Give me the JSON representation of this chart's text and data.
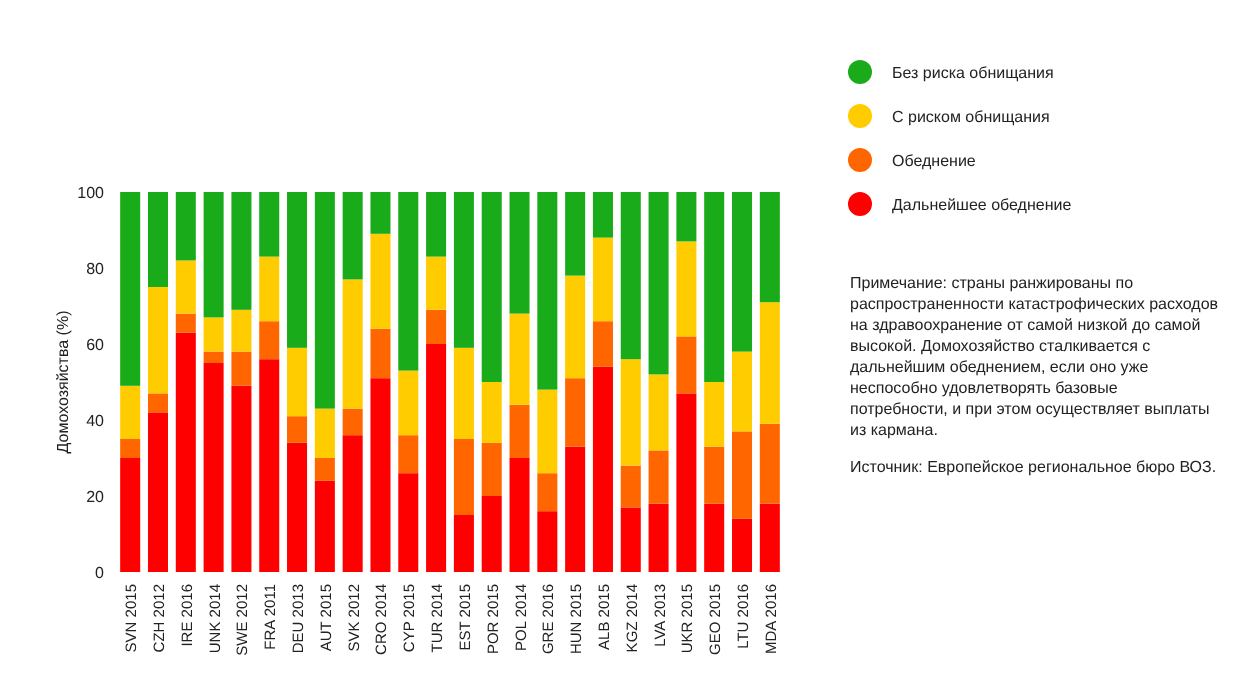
{
  "chart_data": {
    "type": "bar",
    "stacked": true,
    "ylabel": "Домохозяйства (%)",
    "categories": [
      "SVN 2015",
      "CZH 2012",
      "IRE 2016",
      "UNK 2014",
      "SWE 2012",
      "FRA 2011",
      "DEU 2013",
      "AUT 2015",
      "SVK 2012",
      "CRO 2014",
      "CYP 2015",
      "TUR 2014",
      "EST 2015",
      "POR 2015",
      "POL 2014",
      "GRE 2016",
      "HUN 2015",
      "ALB 2015",
      "KGZ 2014",
      "LVA 2013",
      "UKR 2015",
      "GEO 2015",
      "LTU 2016",
      "MDA 2016"
    ],
    "series": [
      {
        "name": "Дальнейшее обеднение",
        "color": "#ff0000",
        "values": [
          30,
          42,
          63,
          55,
          49,
          56,
          34,
          24,
          36,
          51,
          26,
          60,
          15,
          20,
          30,
          16,
          33,
          54,
          17,
          18,
          47,
          18,
          14,
          18
        ]
      },
      {
        "name": "Обеднение",
        "color": "#ff6600",
        "values": [
          5,
          5,
          5,
          3,
          9,
          10,
          7,
          6,
          7,
          13,
          10,
          9,
          20,
          14,
          14,
          10,
          18,
          12,
          11,
          14,
          15,
          15,
          23,
          21
        ]
      },
      {
        "name": "С риском обнищания",
        "color": "#ffcc00",
        "values": [
          14,
          28,
          14,
          9,
          11,
          17,
          18,
          13,
          34,
          25,
          17,
          14,
          24,
          16,
          24,
          22,
          27,
          22,
          28,
          20,
          25,
          17,
          21,
          32
        ]
      },
      {
        "name": "Без риска обнищания",
        "color": "#1aab1a",
        "values": [
          51,
          25,
          18,
          33,
          31,
          17,
          41,
          57,
          23,
          11,
          47,
          17,
          41,
          50,
          32,
          52,
          22,
          12,
          44,
          48,
          13,
          50,
          42,
          29
        ]
      }
    ],
    "ylim": [
      0,
      100
    ],
    "yticks": [
      0,
      20,
      40,
      60,
      80,
      100
    ],
    "grid": false,
    "legend": "top right",
    "annotations": [
      "Примечание: страны ранжированы по распространенности катастрофических расходов на здравоохранение от самой низкой до самой высокой. Домохозяйство сталкивается с дальнейшим обеднением, если оно уже неспособно удовлетворять базовые потребности, и при этом осуществляет выплаты из кармана.",
      "Источник: Европейское региональное бюро ВОЗ."
    ]
  }
}
